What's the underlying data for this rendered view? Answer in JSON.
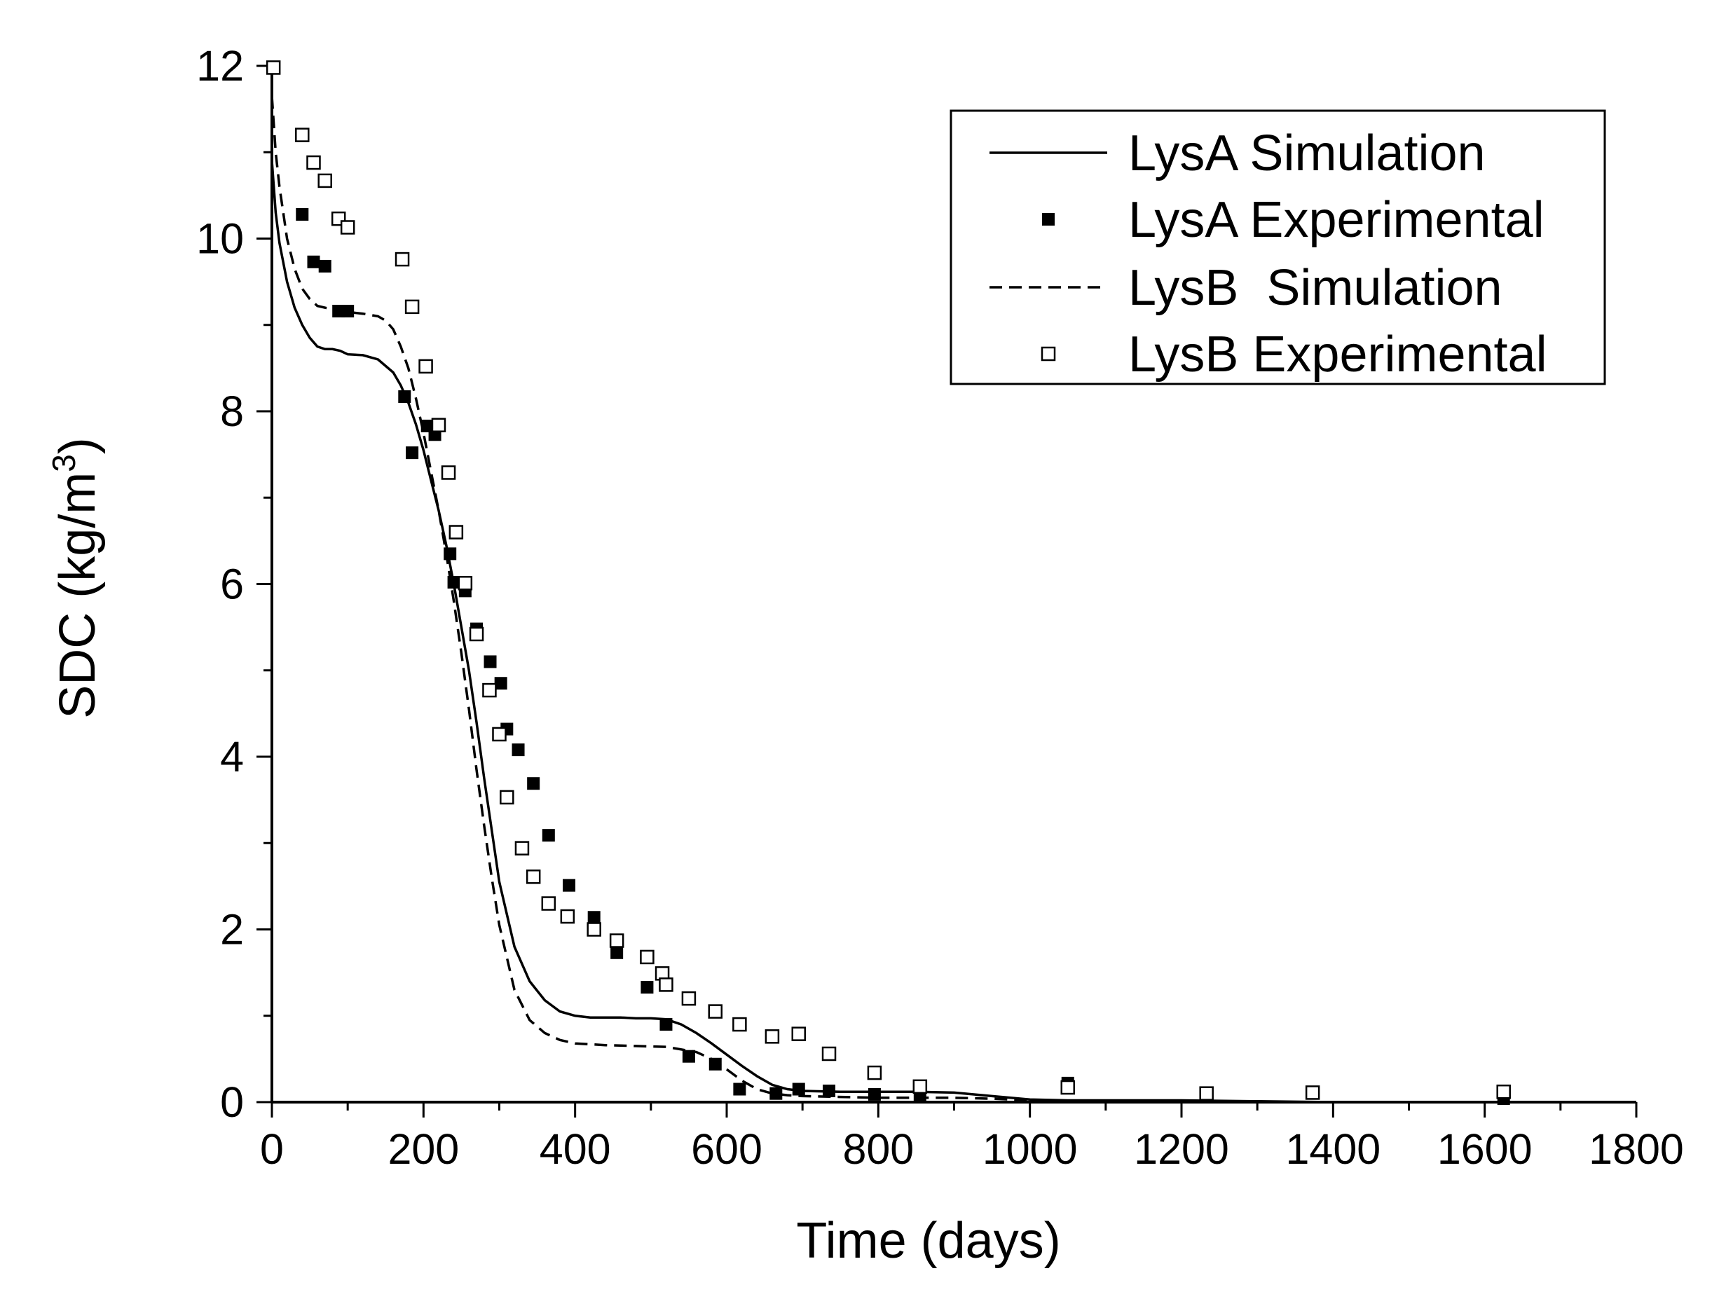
{
  "chart_data": {
    "type": "scatter",
    "title": "",
    "xlabel": "Time (days)",
    "ylabel": "SDC (kg/m",
    "ylabel_superscript": "3",
    "ylabel_suffix": ")",
    "xlim": [
      0,
      1800
    ],
    "ylim": [
      0,
      12
    ],
    "x_ticks": [
      0,
      200,
      400,
      600,
      800,
      1000,
      1200,
      1400,
      1600,
      1800
    ],
    "y_ticks": [
      0,
      2,
      4,
      6,
      8,
      10,
      12
    ],
    "x_tick_labels": [
      "0",
      "200",
      "400",
      "600",
      "800",
      "1000",
      "1200",
      "1400",
      "1600",
      "1800"
    ],
    "y_tick_labels": [
      "0",
      "2",
      "4",
      "6",
      "8",
      "10",
      "12"
    ],
    "legend_position": "top-right",
    "series": [
      {
        "name": "LysA Simulation",
        "kind": "line",
        "style": "solid",
        "color": "#000000",
        "x": [
          0,
          5,
          10,
          20,
          30,
          40,
          50,
          60,
          70,
          80,
          90,
          100,
          120,
          140,
          160,
          170,
          180,
          190,
          200,
          210,
          220,
          230,
          240,
          250,
          260,
          270,
          280,
          290,
          300,
          320,
          340,
          360,
          380,
          400,
          420,
          440,
          460,
          480,
          500,
          520,
          540,
          560,
          580,
          600,
          620,
          640,
          660,
          680,
          700,
          750,
          800,
          850,
          900,
          950,
          1000,
          1050,
          1100,
          1200,
          1300,
          1400
        ],
        "y": [
          10.9,
          10.3,
          9.95,
          9.5,
          9.2,
          9.0,
          8.85,
          8.75,
          8.72,
          8.72,
          8.7,
          8.66,
          8.65,
          8.6,
          8.45,
          8.3,
          8.1,
          7.85,
          7.55,
          7.2,
          6.85,
          6.45,
          6.0,
          5.5,
          5.0,
          4.4,
          3.75,
          3.15,
          2.55,
          1.8,
          1.4,
          1.18,
          1.05,
          1.0,
          0.98,
          0.98,
          0.98,
          0.97,
          0.97,
          0.96,
          0.9,
          0.8,
          0.68,
          0.55,
          0.42,
          0.3,
          0.2,
          0.15,
          0.13,
          0.12,
          0.12,
          0.12,
          0.11,
          0.07,
          0.03,
          0.02,
          0.02,
          0.02,
          0.01,
          0.0
        ]
      },
      {
        "name": "LysA Experimental",
        "kind": "scatter",
        "marker": "filled-square",
        "color": "#000000",
        "x": [
          40,
          55,
          70,
          88,
          100,
          175,
          185,
          205,
          215,
          235,
          240,
          255,
          270,
          288,
          302,
          310,
          325,
          345,
          365,
          392,
          425,
          455,
          495,
          520,
          550,
          585,
          617,
          665,
          695,
          735,
          795,
          855,
          1050,
          1625
        ],
        "y": [
          10.28,
          9.73,
          9.68,
          9.16,
          9.16,
          8.17,
          7.52,
          7.83,
          7.73,
          6.35,
          6.02,
          5.92,
          5.48,
          5.1,
          4.85,
          4.32,
          4.08,
          3.69,
          3.09,
          2.51,
          2.14,
          1.73,
          1.33,
          0.9,
          0.53,
          0.44,
          0.15,
          0.1,
          0.15,
          0.13,
          0.09,
          0.07,
          0.22,
          0.04
        ]
      },
      {
        "name": "LysB  Simulation",
        "kind": "line",
        "style": "dashed",
        "color": "#000000",
        "x": [
          0,
          5,
          10,
          20,
          30,
          40,
          50,
          60,
          80,
          100,
          120,
          140,
          150,
          160,
          170,
          180,
          190,
          200,
          210,
          220,
          230,
          240,
          250,
          260,
          270,
          280,
          290,
          300,
          320,
          340,
          360,
          380,
          400,
          440,
          480,
          520,
          560,
          580,
          600,
          620,
          640,
          660,
          680,
          700,
          750,
          800,
          850,
          900,
          950,
          1000,
          1100,
          1200
        ],
        "y": [
          11.65,
          11.0,
          10.6,
          10.0,
          9.65,
          9.42,
          9.3,
          9.22,
          9.18,
          9.15,
          9.13,
          9.1,
          9.05,
          8.95,
          8.75,
          8.5,
          8.15,
          7.75,
          7.3,
          6.85,
          6.35,
          5.8,
          5.2,
          4.55,
          3.85,
          3.2,
          2.6,
          2.05,
          1.3,
          0.95,
          0.8,
          0.72,
          0.68,
          0.66,
          0.65,
          0.64,
          0.58,
          0.5,
          0.38,
          0.25,
          0.15,
          0.1,
          0.08,
          0.07,
          0.06,
          0.05,
          0.05,
          0.05,
          0.04,
          0.02,
          0.01,
          0.0
        ]
      },
      {
        "name": "LysB Experimental",
        "kind": "scatter",
        "marker": "open-square",
        "color": "#000000",
        "x": [
          2,
          40,
          55,
          70,
          88,
          100,
          172,
          185,
          203,
          220,
          233,
          243,
          255,
          270,
          287,
          300,
          310,
          330,
          345,
          365,
          390,
          425,
          455,
          495,
          515,
          520,
          550,
          585,
          617,
          660,
          695,
          735,
          795,
          855,
          1050,
          1233,
          1373,
          1625
        ],
        "y": [
          11.98,
          11.2,
          10.88,
          10.67,
          10.23,
          10.13,
          9.76,
          9.21,
          8.52,
          7.84,
          7.29,
          6.6,
          6.01,
          5.42,
          4.77,
          4.26,
          3.53,
          2.94,
          2.61,
          2.3,
          2.15,
          2.0,
          1.87,
          1.68,
          1.49,
          1.36,
          1.2,
          1.05,
          0.9,
          0.76,
          0.79,
          0.56,
          0.34,
          0.18,
          0.17,
          0.1,
          0.11,
          0.12
        ]
      }
    ]
  }
}
